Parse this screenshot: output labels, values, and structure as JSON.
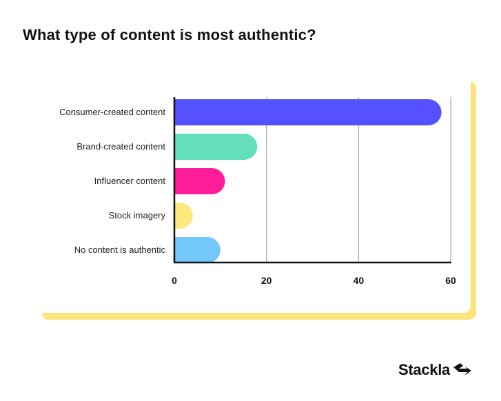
{
  "chart_data": {
    "type": "bar",
    "orientation": "horizontal",
    "title": "What type of content is most authentic?",
    "categories": [
      "Consumer-created content",
      "Brand-created content",
      "Influencer content",
      "Stock imagery",
      "No content is authentic"
    ],
    "values": [
      58,
      18,
      11,
      4,
      10
    ],
    "colors": [
      "#5551ff",
      "#63e0bb",
      "#ff1c99",
      "#fde87d",
      "#72c7fb"
    ],
    "xlim": [
      0,
      60
    ],
    "xticks": [
      "0",
      "20",
      "40",
      "60"
    ],
    "grid": "vertical"
  },
  "brand": {
    "name": "Stackla",
    "accent": "#fde47a"
  }
}
